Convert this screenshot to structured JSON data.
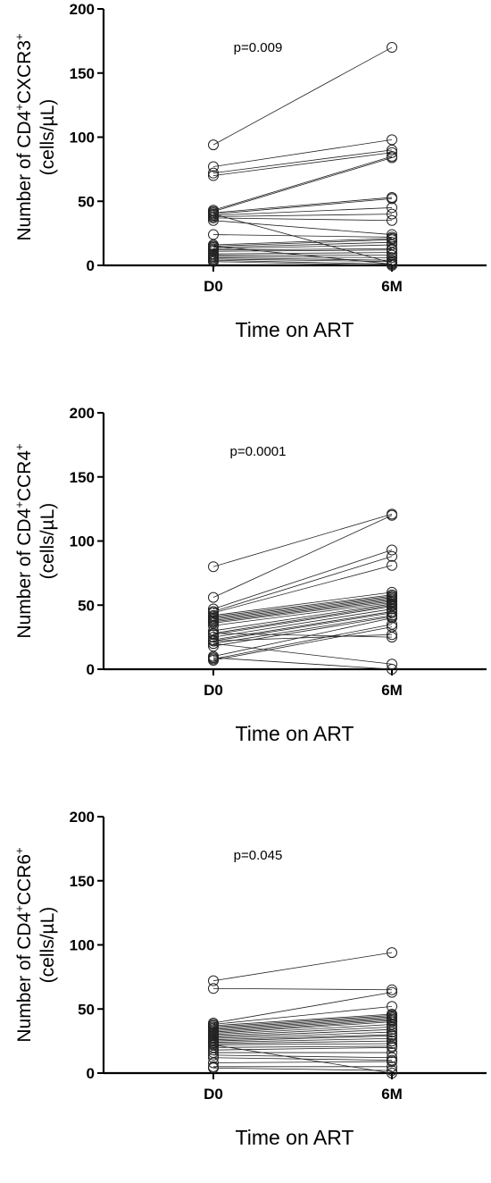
{
  "chart_data": [
    {
      "type": "line",
      "categories": [
        "D0",
        "6M"
      ],
      "ylabel_main": "Number of CD4",
      "ylabel_sup1": "+",
      "ylabel_marker": "CXCR3",
      "ylabel_sup2": "+",
      "ylabel_unit": "(cells/µL)",
      "xlabel": "Time on ART",
      "annotation": "p=0.009",
      "ylim": [
        0,
        200
      ],
      "yticks": [
        0,
        50,
        100,
        150,
        200
      ],
      "pairs": [
        [
          94,
          170
        ],
        [
          77,
          98
        ],
        [
          72,
          90
        ],
        [
          70,
          88
        ],
        [
          43,
          85
        ],
        [
          42,
          84
        ],
        [
          41,
          53
        ],
        [
          40,
          52
        ],
        [
          39,
          45
        ],
        [
          38,
          40
        ],
        [
          37,
          35
        ],
        [
          35,
          24
        ],
        [
          24,
          22
        ],
        [
          16,
          21
        ],
        [
          15,
          20
        ],
        [
          14,
          18
        ],
        [
          13,
          16
        ],
        [
          12,
          13
        ],
        [
          11,
          12
        ],
        [
          9,
          10
        ],
        [
          8,
          8
        ],
        [
          7,
          6
        ],
        [
          6,
          4
        ],
        [
          5,
          3
        ],
        [
          4,
          1
        ],
        [
          3,
          0
        ],
        [
          40,
          2
        ],
        [
          15,
          1
        ]
      ]
    },
    {
      "type": "line",
      "categories": [
        "D0",
        "6M"
      ],
      "ylabel_main": "Number of CD4",
      "ylabel_sup1": "+",
      "ylabel_marker": "CCR4",
      "ylabel_sup2": "+",
      "ylabel_unit": "(cells/µL)",
      "xlabel": "Time on ART",
      "annotation": "p=0.0001",
      "ylim": [
        0,
        200
      ],
      "yticks": [
        0,
        50,
        100,
        150,
        200
      ],
      "pairs": [
        [
          80,
          121
        ],
        [
          56,
          120
        ],
        [
          47,
          93
        ],
        [
          45,
          88
        ],
        [
          44,
          81
        ],
        [
          42,
          60
        ],
        [
          41,
          58
        ],
        [
          40,
          57
        ],
        [
          39,
          56
        ],
        [
          38,
          55
        ],
        [
          37,
          54
        ],
        [
          36,
          53
        ],
        [
          34,
          52
        ],
        [
          30,
          51
        ],
        [
          28,
          50
        ],
        [
          27,
          49
        ],
        [
          25,
          47
        ],
        [
          23,
          45
        ],
        [
          22,
          44
        ],
        [
          20,
          42
        ],
        [
          18,
          41
        ],
        [
          10,
          40
        ],
        [
          8,
          35
        ],
        [
          7,
          33
        ],
        [
          22,
          27
        ],
        [
          28,
          25
        ],
        [
          20,
          4
        ],
        [
          9,
          0
        ]
      ]
    },
    {
      "type": "line",
      "categories": [
        "D0",
        "6M"
      ],
      "ylabel_main": "Number of CD4",
      "ylabel_sup1": "+",
      "ylabel_marker": "CCR6",
      "ylabel_sup2": "+",
      "ylabel_unit": "(cells/µL)",
      "xlabel": "Time on ART",
      "annotation": "p=0.045",
      "ylim": [
        0,
        200
      ],
      "yticks": [
        0,
        50,
        100,
        150,
        200
      ],
      "pairs": [
        [
          72,
          94
        ],
        [
          66,
          65
        ],
        [
          39,
          63
        ],
        [
          38,
          52
        ],
        [
          37,
          46
        ],
        [
          36,
          45
        ],
        [
          35,
          44
        ],
        [
          34,
          43
        ],
        [
          33,
          42
        ],
        [
          32,
          41
        ],
        [
          31,
          40
        ],
        [
          30,
          38
        ],
        [
          29,
          36
        ],
        [
          28,
          34
        ],
        [
          27,
          32
        ],
        [
          26,
          30
        ],
        [
          25,
          29
        ],
        [
          24,
          27
        ],
        [
          23,
          25
        ],
        [
          22,
          23
        ],
        [
          20,
          21
        ],
        [
          18,
          20
        ],
        [
          16,
          16
        ],
        [
          14,
          12
        ],
        [
          12,
          10
        ],
        [
          8,
          9
        ],
        [
          5,
          5
        ],
        [
          4,
          2
        ],
        [
          22,
          0
        ]
      ]
    }
  ]
}
